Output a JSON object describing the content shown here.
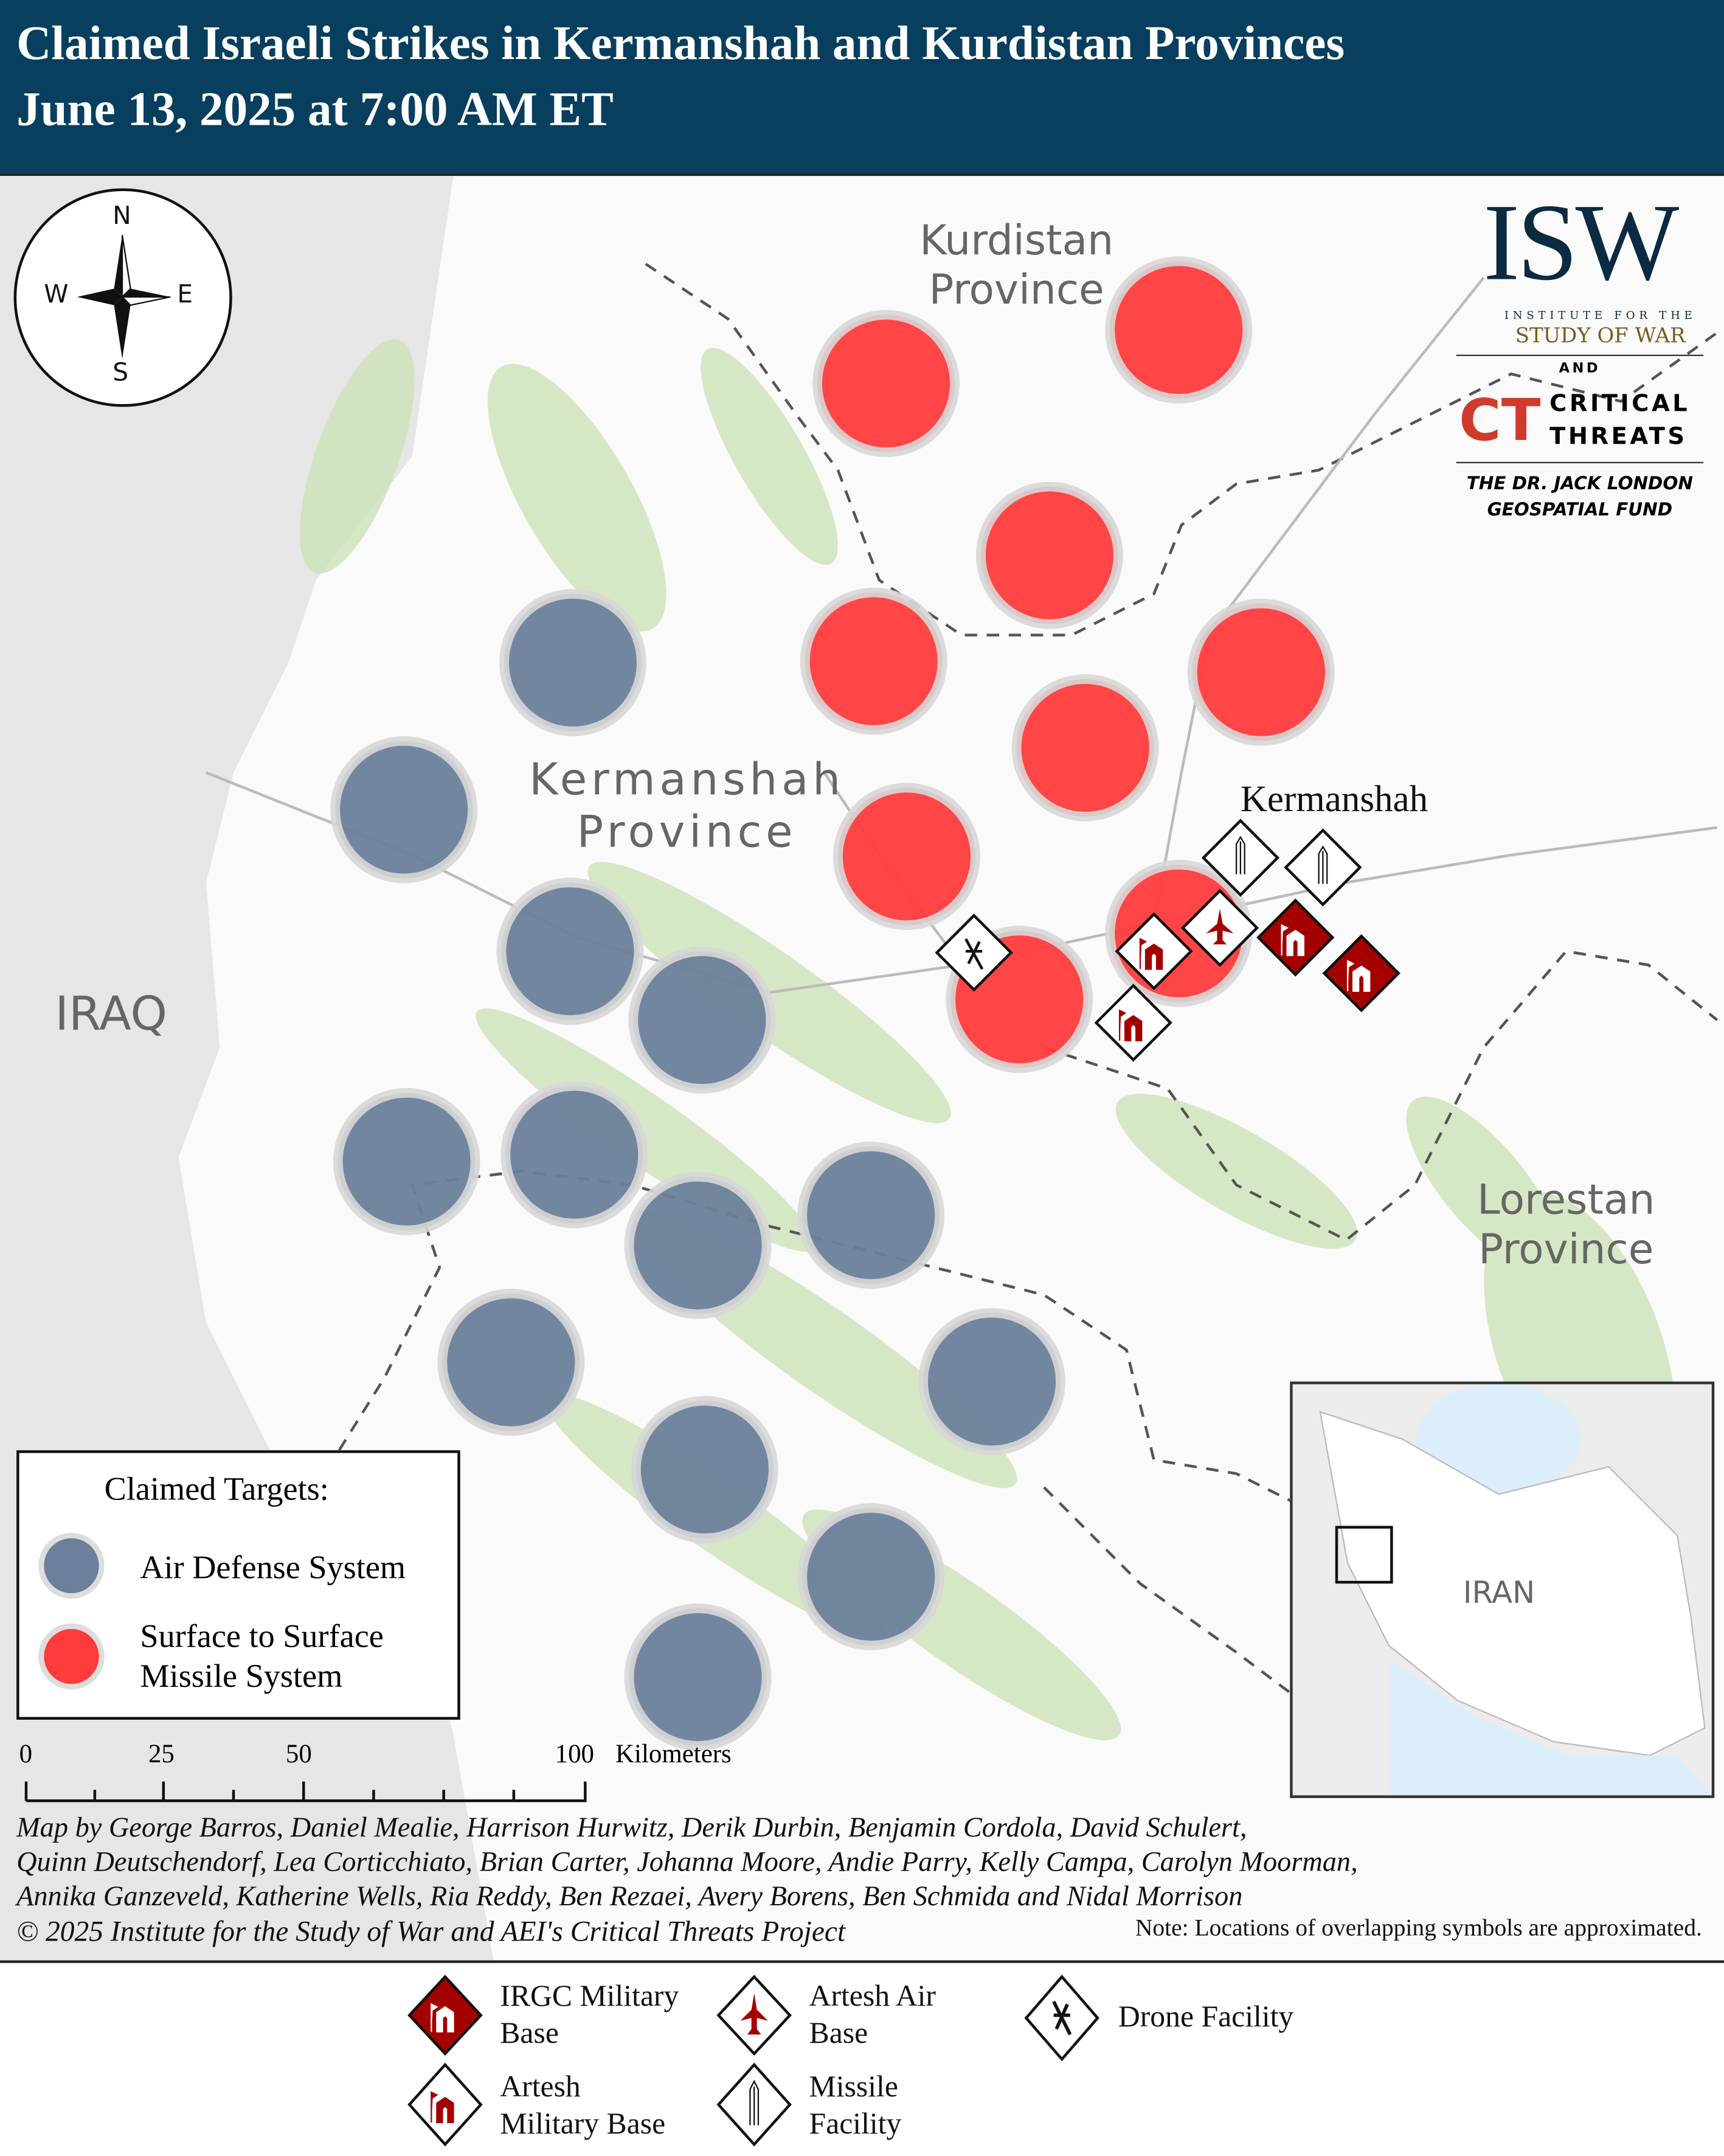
{
  "header": {
    "title_line1": "Claimed Israeli Strikes in Kermanshah and Kurdistan Provinces",
    "title_line2": "June 13, 2025 at 7:00 AM ET",
    "background": "#083f5e"
  },
  "map": {
    "labels": {
      "kurdistan": "Kurdistan Province",
      "kermanshah_province": "Kermanshah Province",
      "lorestan": "Lorestan Province",
      "iraq": "IRAQ",
      "kermanshah_city": "Kermanshah"
    },
    "compass": {
      "n": "N",
      "s": "S",
      "e": "E",
      "w": "W"
    },
    "colors": {
      "air_defense": "#6c7f9b",
      "missile_system": "#ff3b3b",
      "irgc": "#a30000"
    }
  },
  "logo": {
    "isw": "ISW",
    "isw_sub1": "INSTITUTE FOR THE",
    "isw_sub2": "STUDY OF WAR",
    "and": "AND",
    "ct": "CT",
    "ct_line1": "CRITICAL",
    "ct_line2": "THREATS",
    "fund_line1": "THE DR. JACK LONDON",
    "fund_line2": "GEOSPATIAL FUND"
  },
  "legend": {
    "title": "Claimed Targets:",
    "air_defense": "Air Defense System",
    "missile_line1": "Surface to Surface",
    "missile_line2": "Missile System"
  },
  "scale": {
    "ticks": [
      "0",
      "25",
      "50",
      "100"
    ],
    "unit": "Kilometers"
  },
  "credits": {
    "lines": [
      "Map by George Barros, Daniel Mealie, Harrison Hurwitz, Derik Durbin, Benjamin Cordola, David Schulert,",
      "Quinn Deutschendorf, Lea Corticchiato, Brian Carter, Johanna Moore, Andie Parry, Kelly Campa, Carolyn Moorman,",
      "Annika Ganzeveld, Katherine Wells, Ria Reddy, Ben Rezaei, Avery Borens, Ben Schmida and Nidal Morrison",
      "© 2025 Institute for the Study of War and AEI's Critical Threats Project"
    ],
    "note": "Note: Locations of overlapping symbols are approximated."
  },
  "inset": {
    "label": "IRAN"
  },
  "footer_legend": {
    "irgc": [
      "IRGC Military",
      "Base"
    ],
    "air": [
      "Artesh Air",
      "Base"
    ],
    "drone": "Drone Facility",
    "artesh": [
      "Artesh",
      "Military Base"
    ],
    "missile": [
      "Missile",
      "Facility"
    ]
  }
}
